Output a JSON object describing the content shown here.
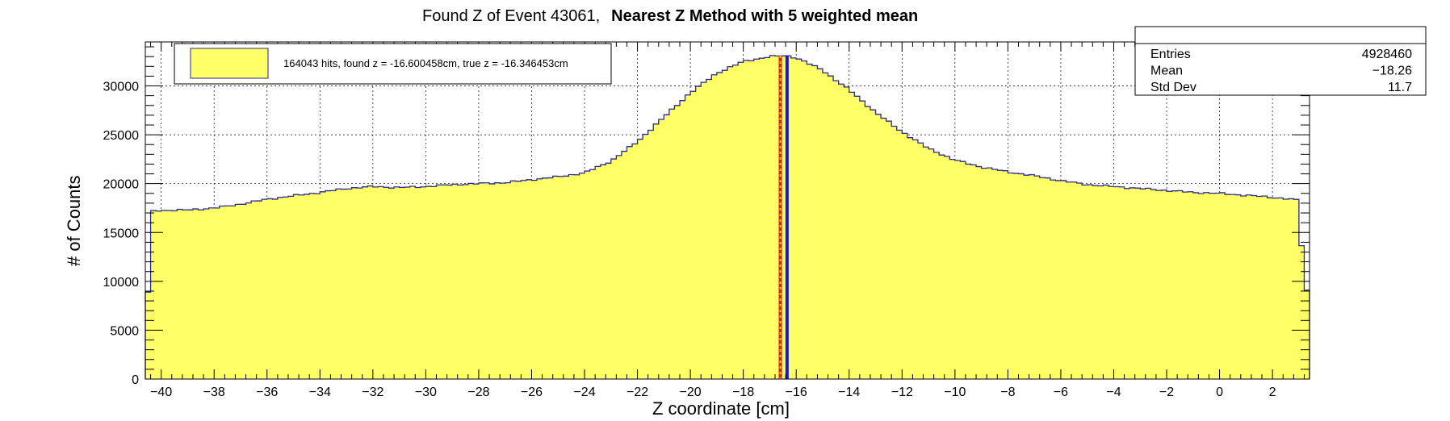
{
  "chart_data": {
    "type": "histogram",
    "title_normal": "Found Z of Event 43061,",
    "title_bold": "Nearest Z Method with 5 weighted mean",
    "xlabel": "Z coordinate [cm]",
    "ylabel": "# of Counts",
    "xlim": [
      -40.6,
      3.4
    ],
    "ylim": [
      0,
      34500
    ],
    "bin_start": -40.6,
    "bin_width": 0.2,
    "x_ticks": [
      -40,
      -38,
      -36,
      -34,
      -32,
      -30,
      -28,
      -26,
      -24,
      -22,
      -20,
      -18,
      -16,
      -14,
      -12,
      -10,
      -8,
      -6,
      -4,
      -2,
      0,
      2
    ],
    "y_ticks": [
      0,
      5000,
      10000,
      15000,
      20000,
      25000,
      30000
    ],
    "grid": true,
    "fill_color": "#ffff66",
    "line_color": "#2a2a88",
    "profile": [
      [
        -40.6,
        8900
      ],
      [
        -40.4,
        17100
      ],
      [
        -40.2,
        17250
      ],
      [
        -39,
        17300
      ],
      [
        -38,
        17500
      ],
      [
        -37,
        17900
      ],
      [
        -36,
        18400
      ],
      [
        -35,
        18750
      ],
      [
        -34,
        19100
      ],
      [
        -33,
        19500
      ],
      [
        -32,
        19700
      ],
      [
        -31,
        19600
      ],
      [
        -30,
        19700
      ],
      [
        -29,
        19900
      ],
      [
        -28,
        20000
      ],
      [
        -27,
        20100
      ],
      [
        -26,
        20400
      ],
      [
        -25,
        20700
      ],
      [
        -24,
        21100
      ],
      [
        -23,
        22300
      ],
      [
        -22,
        24300
      ],
      [
        -21,
        26800
      ],
      [
        -20,
        29300
      ],
      [
        -19,
        31300
      ],
      [
        -18,
        32500
      ],
      [
        -17,
        33000
      ],
      [
        -16.4,
        33100
      ],
      [
        -16,
        32900
      ],
      [
        -15,
        31600
      ],
      [
        -14,
        29600
      ],
      [
        -13,
        27300
      ],
      [
        -12,
        25300
      ],
      [
        -11,
        23600
      ],
      [
        -10,
        22400
      ],
      [
        -9,
        21700
      ],
      [
        -8,
        21200
      ],
      [
        -7,
        20800
      ],
      [
        -6,
        20300
      ],
      [
        -5,
        19900
      ],
      [
        -4,
        19700
      ],
      [
        -3,
        19500
      ],
      [
        -2,
        19300
      ],
      [
        -1,
        19100
      ],
      [
        0,
        19000
      ],
      [
        1,
        18800
      ],
      [
        2,
        18600
      ],
      [
        3,
        18300
      ],
      [
        3.2,
        9100
      ]
    ],
    "found_z": -16.600458,
    "true_z": -16.346453,
    "found_line_color": "#d61f1f",
    "found_line_dash_color": "#f0c020",
    "true_line_color": "#1515e0",
    "legend": {
      "label": "164043 hits, found z = -16.600458cm, true z = -16.346453cm"
    },
    "stats": {
      "rows": [
        {
          "label": "Entries",
          "value": "4928460"
        },
        {
          "label": "Mean",
          "value": "−18.26"
        },
        {
          "label": "Std Dev",
          "value": "11.7"
        }
      ]
    }
  }
}
